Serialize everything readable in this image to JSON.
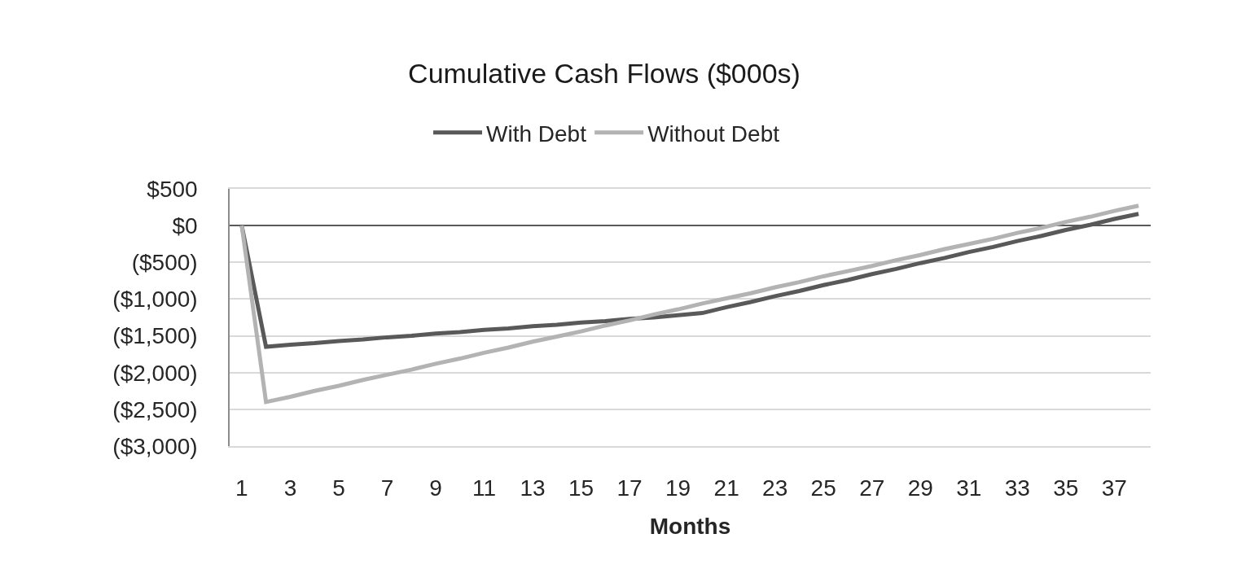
{
  "chart_data": {
    "type": "line",
    "title": "Cumulative Cash Flows ($000s)",
    "xlabel": "Months",
    "x": [
      1,
      2,
      3,
      4,
      5,
      6,
      7,
      8,
      9,
      10,
      11,
      12,
      13,
      14,
      15,
      16,
      17,
      18,
      19,
      20,
      21,
      22,
      23,
      24,
      25,
      26,
      27,
      28,
      29,
      30,
      31,
      32,
      33,
      34,
      35,
      36,
      37,
      38
    ],
    "series": [
      {
        "name": "With Debt",
        "color": "#595959",
        "values": [
          0,
          -1650,
          -1620,
          -1600,
          -1570,
          -1550,
          -1520,
          -1500,
          -1470,
          -1450,
          -1420,
          -1400,
          -1370,
          -1350,
          -1320,
          -1300,
          -1270,
          -1250,
          -1220,
          -1190,
          -1110,
          -1040,
          -960,
          -890,
          -810,
          -740,
          -660,
          -590,
          -510,
          -440,
          -360,
          -290,
          -210,
          -140,
          -60,
          10,
          90,
          160
        ]
      },
      {
        "name": "Without Debt",
        "color": "#b3b3b3",
        "values": [
          0,
          -2400,
          -2330,
          -2250,
          -2180,
          -2100,
          -2030,
          -1960,
          -1880,
          -1810,
          -1730,
          -1660,
          -1580,
          -1510,
          -1440,
          -1360,
          -1290,
          -1210,
          -1140,
          -1060,
          -990,
          -920,
          -840,
          -770,
          -690,
          -620,
          -550,
          -470,
          -400,
          -320,
          -250,
          -180,
          -100,
          -30,
          50,
          120,
          200,
          270
        ]
      }
    ],
    "xlim": [
      0.5,
      38.5
    ],
    "xticks": [
      1,
      3,
      5,
      7,
      9,
      11,
      13,
      15,
      17,
      19,
      21,
      23,
      25,
      27,
      29,
      31,
      33,
      35,
      37
    ],
    "ylim": [
      -3000,
      500
    ],
    "yticks": [
      {
        "value": 500,
        "label": "$500"
      },
      {
        "value": 0,
        "label": "$0"
      },
      {
        "value": -500,
        "label": "($500)"
      },
      {
        "value": -1000,
        "label": "($1,000)"
      },
      {
        "value": -1500,
        "label": "($1,500)"
      },
      {
        "value": -2000,
        "label": "($2,000)"
      },
      {
        "value": -2500,
        "label": "($2,500)"
      },
      {
        "value": -3000,
        "label": "($3,000)"
      }
    ],
    "grid": "y",
    "legend": "top"
  }
}
